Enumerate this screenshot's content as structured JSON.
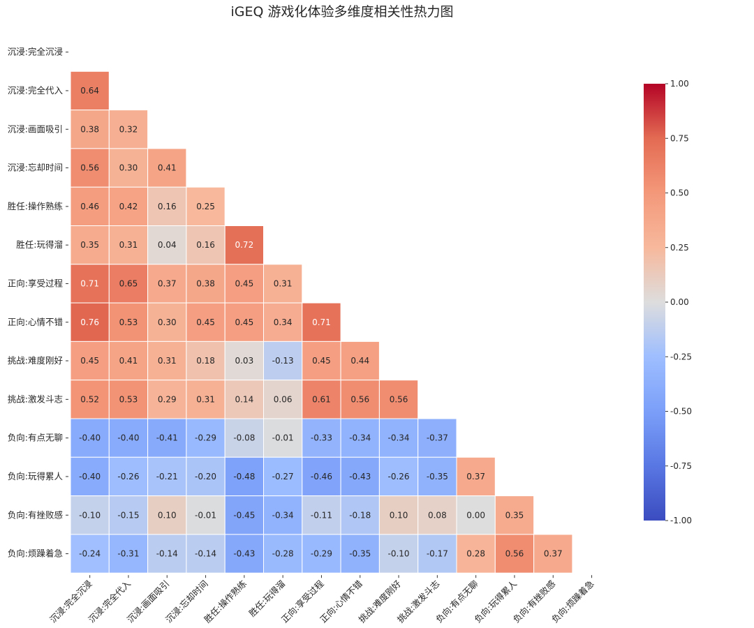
{
  "chart_data": {
    "type": "heatmap",
    "title": "iGEQ 游戏化体验多维度相关性热力图",
    "mask": "upper-triangle-and-diagonal",
    "labels": [
      "沉浸:完全沉浸",
      "沉浸:完全代入",
      "沉浸:画面吸引",
      "沉浸:忘却时间",
      "胜任:操作熟练",
      "胜任:玩得溜",
      "正向:享受过程",
      "正向:心情不错",
      "挑战:难度刚好",
      "挑战:激发斗志",
      "负向:有点无聊",
      "负向:玩得累人",
      "负向:有挫败感",
      "负向:烦躁着急"
    ],
    "values": [
      [],
      [
        0.64
      ],
      [
        0.38,
        0.32
      ],
      [
        0.56,
        0.3,
        0.41
      ],
      [
        0.46,
        0.42,
        0.16,
        0.25
      ],
      [
        0.35,
        0.31,
        0.04,
        0.16,
        0.72
      ],
      [
        0.71,
        0.65,
        0.37,
        0.38,
        0.45,
        0.31
      ],
      [
        0.76,
        0.53,
        0.3,
        0.45,
        0.45,
        0.34,
        0.71
      ],
      [
        0.45,
        0.41,
        0.31,
        0.18,
        0.03,
        -0.13,
        0.45,
        0.44
      ],
      [
        0.52,
        0.53,
        0.29,
        0.31,
        0.14,
        0.06,
        0.61,
        0.56,
        0.56
      ],
      [
        -0.4,
        -0.4,
        -0.41,
        -0.29,
        -0.08,
        -0.01,
        -0.33,
        -0.34,
        -0.34,
        -0.37
      ],
      [
        -0.4,
        -0.26,
        -0.21,
        -0.2,
        -0.48,
        -0.27,
        -0.46,
        -0.43,
        -0.26,
        -0.35,
        0.37
      ],
      [
        -0.1,
        -0.15,
        0.1,
        -0.01,
        -0.45,
        -0.34,
        -0.11,
        -0.18,
        0.1,
        0.08,
        0.0,
        0.35
      ],
      [
        -0.24,
        -0.31,
        -0.14,
        -0.14,
        -0.43,
        -0.28,
        -0.29,
        -0.35,
        -0.1,
        -0.17,
        0.28,
        0.56,
        0.37
      ]
    ],
    "colormap": "coolwarm",
    "colorbar": {
      "vmin": -1.0,
      "vmax": 1.0,
      "ticks": [
        "1.00",
        "0.75",
        "0.50",
        "0.25",
        "0.00",
        "-0.25",
        "-0.50",
        "-0.75",
        "-1.00"
      ]
    },
    "number_format": "0.00",
    "grid_lines": "white"
  }
}
